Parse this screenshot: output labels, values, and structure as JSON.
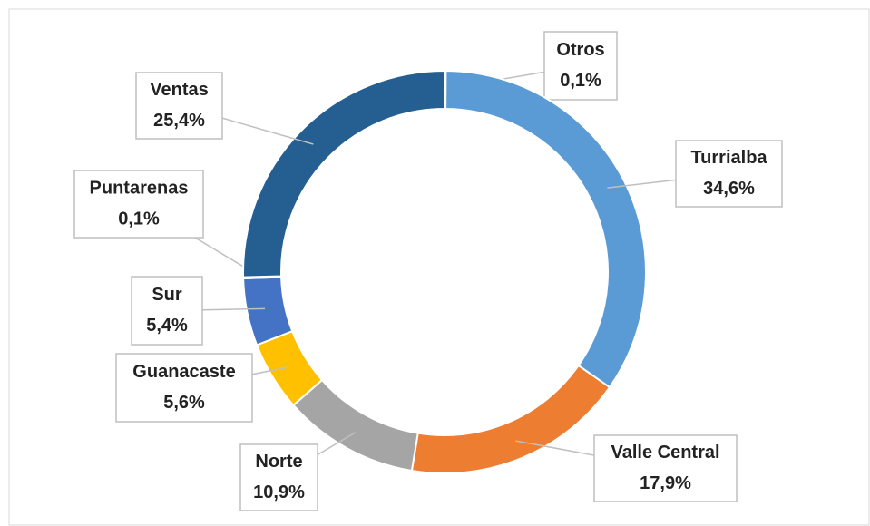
{
  "chart_data": {
    "type": "donut",
    "categories": [
      "Otros",
      "Turrialba",
      "Valle Central",
      "Norte",
      "Guanacaste",
      "Sur",
      "Puntarenas",
      "Ventas"
    ],
    "values": [
      0.1,
      34.6,
      17.9,
      10.9,
      5.6,
      5.4,
      0.1,
      25.4
    ],
    "value_labels": [
      "0,1%",
      "34,6%",
      "17,9%",
      "10,9%",
      "5,6%",
      "5,4%",
      "0,1%",
      "25,4%"
    ],
    "colors": [
      "#264478",
      "#5b9bd5",
      "#ed7d31",
      "#a5a5a5",
      "#ffc000",
      "#4472c4",
      "#70ad47",
      "#255e91"
    ]
  }
}
